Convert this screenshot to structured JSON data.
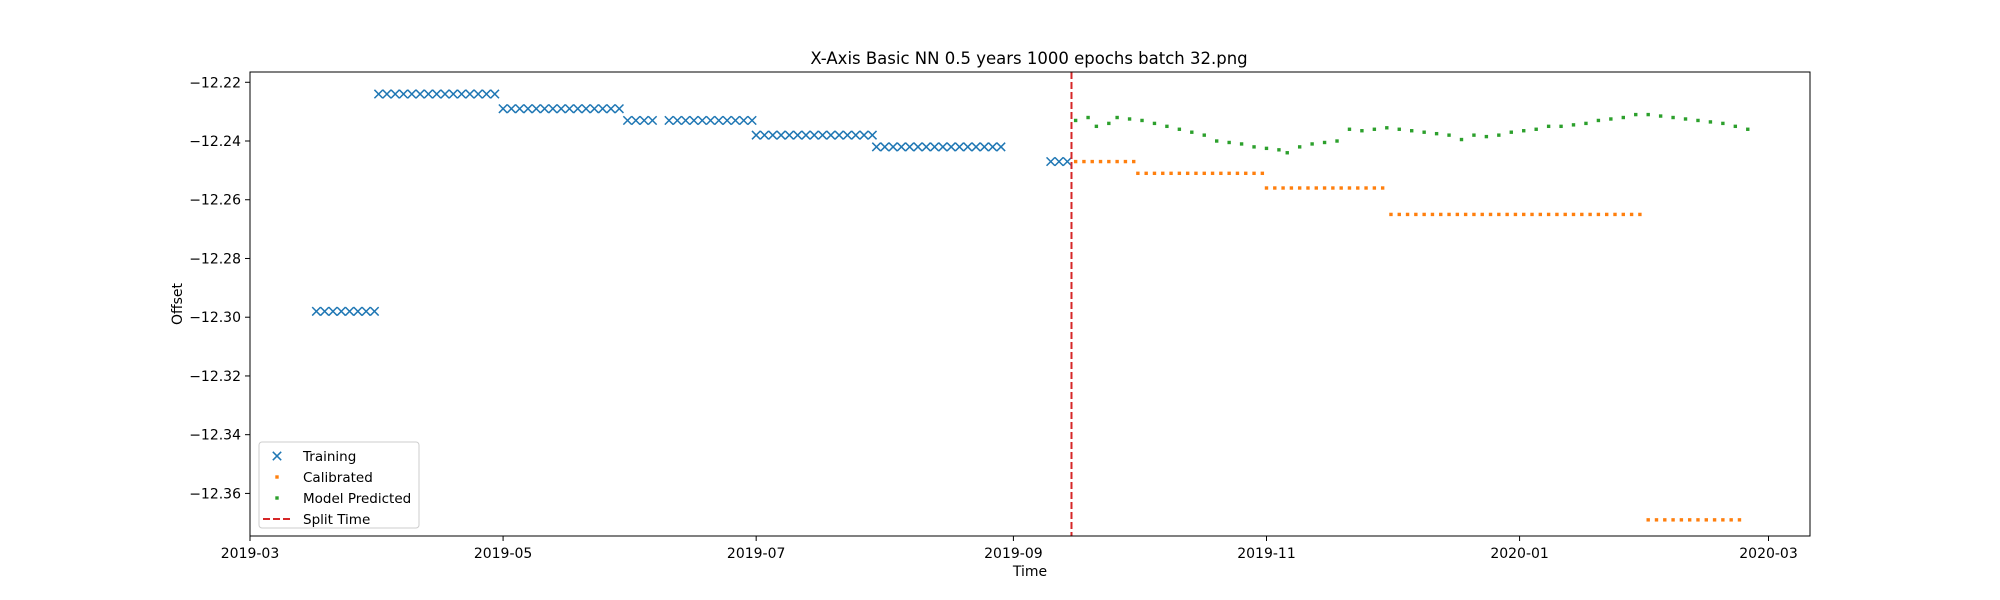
{
  "chart_data": {
    "type": "scatter",
    "title": "X-Axis Basic NN 0.5 years 1000 epochs batch 32.png",
    "xlabel": "Time",
    "ylabel": "Offset",
    "x_range": [
      "2019-03-01",
      "2020-03-11"
    ],
    "ylim": [
      -12.3745,
      -12.2165
    ],
    "x_ticks": [
      "2019-03-01",
      "2019-05-01",
      "2019-07-01",
      "2019-09-01",
      "2019-11-01",
      "2020-01-01",
      "2020-03-01"
    ],
    "x_tick_labels": [
      "2019-03",
      "2019-05",
      "2019-07",
      "2019-09",
      "2019-11",
      "2020-01",
      "2020-03"
    ],
    "y_ticks": [
      -12.22,
      -12.24,
      -12.26,
      -12.28,
      -12.3,
      -12.32,
      -12.34,
      -12.36
    ],
    "y_tick_labels": [
      "−12.22",
      "−12.24",
      "−12.26",
      "−12.28",
      "−12.30",
      "−12.32",
      "−12.34",
      "−12.36"
    ],
    "grid": false,
    "legend_position": "lower-left",
    "split_time": "2019-09-15",
    "series": [
      {
        "name": "Training",
        "marker": "x",
        "color": "#1f77b4",
        "segments": [
          {
            "start": "2019-03-17",
            "end": "2019-03-31",
            "value": -12.298
          },
          {
            "start": "2019-04-01",
            "end": "2019-04-30",
            "value": -12.224
          },
          {
            "start": "2019-05-01",
            "end": "2019-05-30",
            "value": -12.229
          },
          {
            "start": "2019-05-31",
            "end": "2019-06-06",
            "value": -12.233
          },
          {
            "start": "2019-06-10",
            "end": "2019-06-30",
            "value": -12.233
          },
          {
            "start": "2019-07-01",
            "end": "2019-07-29",
            "value": -12.238
          },
          {
            "start": "2019-07-30",
            "end": "2019-08-30",
            "value": -12.242
          },
          {
            "start": "2019-09-10",
            "end": "2019-09-14",
            "value": -12.247
          }
        ]
      },
      {
        "name": "Calibrated",
        "marker": "point",
        "color": "#ff7f0e",
        "segments": [
          {
            "start": "2019-09-16",
            "end": "2019-09-30",
            "value": -12.247
          },
          {
            "start": "2019-10-01",
            "end": "2019-10-31",
            "value": -12.251
          },
          {
            "start": "2019-11-01",
            "end": "2019-11-30",
            "value": -12.256
          },
          {
            "start": "2019-12-01",
            "end": "2020-01-31",
            "value": -12.265
          },
          {
            "start": "2020-02-01",
            "end": "2020-02-23",
            "value": -12.369
          }
        ]
      },
      {
        "name": "Model Predicted",
        "marker": "point",
        "color": "#2ca02c",
        "points": [
          [
            "2019-09-16",
            -12.233
          ],
          [
            "2019-09-19",
            -12.232
          ],
          [
            "2019-09-21",
            -12.235
          ],
          [
            "2019-09-24",
            -12.234
          ],
          [
            "2019-09-26",
            -12.232
          ],
          [
            "2019-09-29",
            -12.2325
          ],
          [
            "2019-10-02",
            -12.233
          ],
          [
            "2019-10-05",
            -12.234
          ],
          [
            "2019-10-08",
            -12.235
          ],
          [
            "2019-10-11",
            -12.236
          ],
          [
            "2019-10-14",
            -12.237
          ],
          [
            "2019-10-17",
            -12.238
          ],
          [
            "2019-10-20",
            -12.24
          ],
          [
            "2019-10-23",
            -12.2405
          ],
          [
            "2019-10-26",
            -12.241
          ],
          [
            "2019-10-29",
            -12.242
          ],
          [
            "2019-11-01",
            -12.2425
          ],
          [
            "2019-11-04",
            -12.243
          ],
          [
            "2019-11-06",
            -12.244
          ],
          [
            "2019-11-09",
            -12.242
          ],
          [
            "2019-11-12",
            -12.241
          ],
          [
            "2019-11-15",
            -12.2405
          ],
          [
            "2019-11-18",
            -12.24
          ],
          [
            "2019-11-21",
            -12.236
          ],
          [
            "2019-11-24",
            -12.2365
          ],
          [
            "2019-11-27",
            -12.236
          ],
          [
            "2019-11-30",
            -12.2355
          ],
          [
            "2019-12-03",
            -12.236
          ],
          [
            "2019-12-06",
            -12.2365
          ],
          [
            "2019-12-09",
            -12.237
          ],
          [
            "2019-12-12",
            -12.2375
          ],
          [
            "2019-12-15",
            -12.238
          ],
          [
            "2019-12-18",
            -12.2395
          ],
          [
            "2019-12-21",
            -12.238
          ],
          [
            "2019-12-24",
            -12.2385
          ],
          [
            "2019-12-27",
            -12.238
          ],
          [
            "2019-12-30",
            -12.237
          ],
          [
            "2020-01-02",
            -12.2365
          ],
          [
            "2020-01-05",
            -12.236
          ],
          [
            "2020-01-08",
            -12.235
          ],
          [
            "2020-01-11",
            -12.235
          ],
          [
            "2020-01-14",
            -12.2345
          ],
          [
            "2020-01-17",
            -12.234
          ],
          [
            "2020-01-20",
            -12.233
          ],
          [
            "2020-01-23",
            -12.2325
          ],
          [
            "2020-01-26",
            -12.232
          ],
          [
            "2020-01-29",
            -12.231
          ],
          [
            "2020-02-01",
            -12.231
          ],
          [
            "2020-02-04",
            -12.2315
          ],
          [
            "2020-02-07",
            -12.232
          ],
          [
            "2020-02-10",
            -12.2325
          ],
          [
            "2020-02-13",
            -12.233
          ],
          [
            "2020-02-16",
            -12.2335
          ],
          [
            "2020-02-19",
            -12.234
          ],
          [
            "2020-02-22",
            -12.235
          ],
          [
            "2020-02-25",
            -12.236
          ]
        ]
      },
      {
        "name": "Split Time",
        "marker": "dashed-line",
        "color": "#d62728"
      }
    ]
  }
}
